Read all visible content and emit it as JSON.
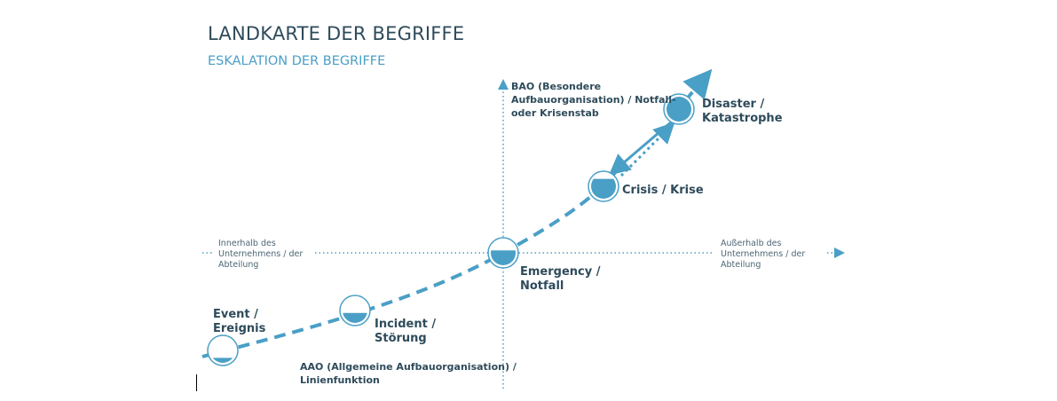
{
  "header": {
    "title": "LANDKARTE DER BEGRIFFE",
    "subtitle": "ESKALATION DER BEGRIFFE"
  },
  "colors": {
    "accent": "#4a9fc6",
    "text": "#2e4b5b"
  },
  "axes": {
    "vertical_top_label": [
      "BAO (Besondere",
      "Aufbauorganisation) / Notfall-",
      "oder Krisenstab"
    ],
    "vertical_bottom_label": [
      "AAO (Allgemeine Aufbauorganisation) /",
      "Linienfunktion"
    ],
    "horizontal_left_label": [
      "Innerhalb des",
      "Unternehmens / der",
      "Abteilung"
    ],
    "horizontal_right_label": [
      "Außerhalb des",
      "Unternehmens / der",
      "Abteilung"
    ]
  },
  "stages": [
    {
      "label": [
        "Event /",
        "Ereignis"
      ],
      "fill_level": 0.2
    },
    {
      "label": [
        "Incident /",
        "Störung"
      ],
      "fill_level": 0.4
    },
    {
      "label": [
        "Emergency /",
        "Notfall"
      ],
      "fill_level": 0.6
    },
    {
      "label": [
        "Crisis / Krise"
      ],
      "fill_level": 0.8
    },
    {
      "label": [
        "Disaster /",
        "Katastrophe"
      ],
      "fill_level": 1.0
    }
  ]
}
